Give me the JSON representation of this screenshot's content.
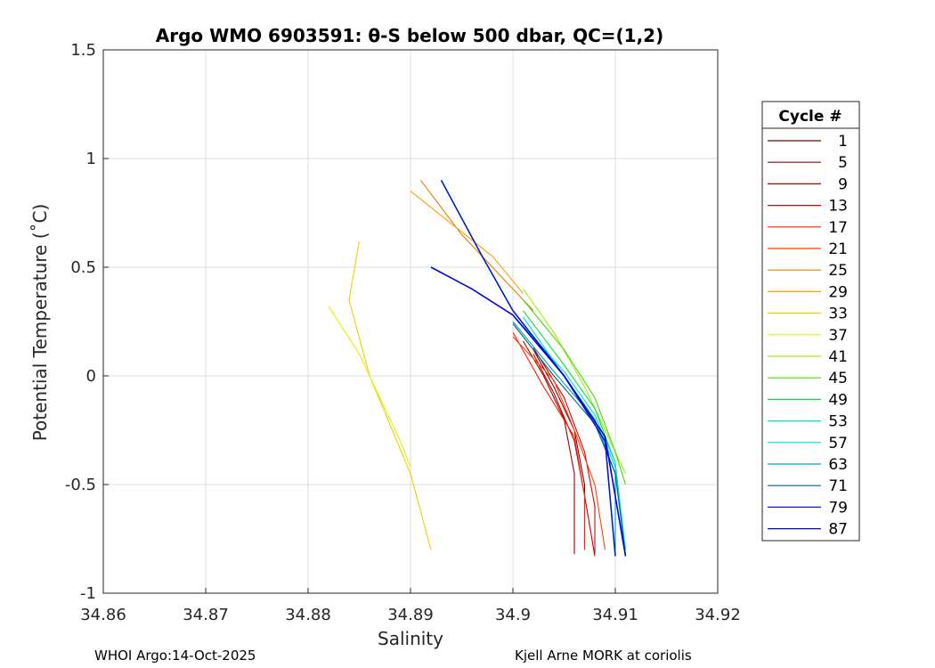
{
  "chart_data": {
    "type": "line",
    "title": "Argo WMO 6903591: θ-S below 500 dbar,  QC=(1,2)",
    "xlabel": "Salinity",
    "ylabel": "Potential Temperature (˚C)",
    "xlim": [
      34.86,
      34.92
    ],
    "ylim": [
      -1,
      1.5
    ],
    "xticks": [
      "34.86",
      "34.87",
      "34.88",
      "34.89",
      "34.9",
      "34.91",
      "34.92"
    ],
    "yticks": [
      "-1",
      "-0.5",
      "0",
      "0.5",
      "1",
      "1.5"
    ],
    "grid": true,
    "legend": {
      "title": "Cycle #",
      "placement": "outside-right",
      "entries": [
        "1",
        "5",
        "9",
        "13",
        "17",
        "21",
        "25",
        "29",
        "33",
        "37",
        "41",
        "45",
        "49",
        "53",
        "57",
        "63",
        "71",
        "79",
        "87"
      ]
    },
    "series": [
      {
        "name": "1",
        "color": "#800000",
        "points": [
          [
            34.902,
            0.12
          ],
          [
            34.904,
            -0.05
          ],
          [
            34.906,
            -0.25
          ],
          [
            34.907,
            -0.5
          ],
          [
            34.907,
            -0.8
          ]
        ]
      },
      {
        "name": "5",
        "color": "#a00000",
        "points": [
          [
            34.901,
            0.16
          ],
          [
            34.903,
            0.0
          ],
          [
            34.905,
            -0.2
          ],
          [
            34.906,
            -0.45
          ],
          [
            34.906,
            -0.82
          ]
        ]
      },
      {
        "name": "9",
        "color": "#c00000",
        "points": [
          [
            34.902,
            0.1
          ],
          [
            34.904,
            -0.08
          ],
          [
            34.906,
            -0.3
          ],
          [
            34.907,
            -0.55
          ],
          [
            34.908,
            -0.83
          ]
        ]
      },
      {
        "name": "13",
        "color": "#e00000",
        "points": [
          [
            34.902,
            0.13
          ],
          [
            34.905,
            -0.1
          ],
          [
            34.907,
            -0.35
          ],
          [
            34.908,
            -0.6
          ],
          [
            34.908,
            -0.82
          ]
        ]
      },
      {
        "name": "17",
        "color": "#ff2000",
        "points": [
          [
            34.9,
            0.2
          ],
          [
            34.903,
            -0.05
          ],
          [
            34.906,
            -0.28
          ],
          [
            34.907,
            -0.55
          ],
          [
            34.907,
            -0.8
          ]
        ]
      },
      {
        "name": "21",
        "color": "#ff4000",
        "points": [
          [
            34.9,
            0.18
          ],
          [
            34.904,
            -0.02
          ],
          [
            34.906,
            -0.25
          ],
          [
            34.908,
            -0.5
          ],
          [
            34.909,
            -0.8
          ]
        ]
      },
      {
        "name": "25",
        "color": "#e08000",
        "points": [
          [
            34.891,
            0.9
          ],
          [
            34.895,
            0.65
          ],
          [
            34.899,
            0.45
          ],
          [
            34.902,
            0.3
          ]
        ]
      },
      {
        "name": "29",
        "color": "#ffa000",
        "points": [
          [
            34.89,
            0.85
          ],
          [
            34.894,
            0.7
          ],
          [
            34.898,
            0.55
          ],
          [
            34.901,
            0.38
          ]
        ]
      },
      {
        "name": "33",
        "color": "#f0d000",
        "points": [
          [
            34.885,
            0.62
          ],
          [
            34.884,
            0.35
          ],
          [
            34.886,
            0.0
          ],
          [
            34.89,
            -0.45
          ],
          [
            34.892,
            -0.8
          ]
        ]
      },
      {
        "name": "37",
        "color": "#e0f000",
        "points": [
          [
            34.882,
            0.32
          ],
          [
            34.885,
            0.1
          ],
          [
            34.887,
            -0.1
          ],
          [
            34.889,
            -0.3
          ],
          [
            34.89,
            -0.42
          ]
        ]
      },
      {
        "name": "41",
        "color": "#a0f000",
        "points": [
          [
            34.901,
            0.4
          ],
          [
            34.904,
            0.2
          ],
          [
            34.907,
            -0.05
          ],
          [
            34.909,
            -0.25
          ],
          [
            34.911,
            -0.45
          ]
        ]
      },
      {
        "name": "45",
        "color": "#40e000",
        "points": [
          [
            34.901,
            0.35
          ],
          [
            34.905,
            0.12
          ],
          [
            34.908,
            -0.1
          ],
          [
            34.91,
            -0.35
          ],
          [
            34.911,
            -0.5
          ]
        ]
      },
      {
        "name": "49",
        "color": "#00e040",
        "points": [
          [
            34.901,
            0.3
          ],
          [
            34.905,
            0.05
          ],
          [
            34.908,
            -0.15
          ],
          [
            34.91,
            -0.4
          ],
          [
            34.91,
            -0.8
          ]
        ]
      },
      {
        "name": "53",
        "color": "#00e0c0",
        "points": [
          [
            34.9,
            0.28
          ],
          [
            34.905,
            0.02
          ],
          [
            34.908,
            -0.18
          ],
          [
            34.91,
            -0.4
          ],
          [
            34.911,
            -0.8
          ]
        ]
      },
      {
        "name": "57",
        "color": "#00d8d8",
        "points": [
          [
            34.901,
            0.27
          ],
          [
            34.905,
            0.0
          ],
          [
            34.908,
            -0.2
          ],
          [
            34.91,
            -0.42
          ],
          [
            34.911,
            -0.82
          ]
        ]
      },
      {
        "name": "63",
        "color": "#00a0c0",
        "points": [
          [
            34.9,
            0.25
          ],
          [
            34.904,
            0.02
          ],
          [
            34.908,
            -0.2
          ],
          [
            34.91,
            -0.45
          ],
          [
            34.91,
            -0.82
          ]
        ]
      },
      {
        "name": "71",
        "color": "#006080",
        "points": [
          [
            34.9,
            0.24
          ],
          [
            34.904,
            0.0
          ],
          [
            34.908,
            -0.22
          ],
          [
            34.91,
            -0.45
          ],
          [
            34.911,
            -0.83
          ]
        ]
      },
      {
        "name": "79",
        "color": "#0020c0",
        "points": [
          [
            34.893,
            0.9
          ],
          [
            34.897,
            0.55
          ],
          [
            34.9,
            0.3
          ],
          [
            34.905,
            0.0
          ],
          [
            34.909,
            -0.3
          ],
          [
            34.91,
            -0.83
          ]
        ]
      },
      {
        "name": "87",
        "color": "#0000e0",
        "points": [
          [
            34.892,
            0.5
          ],
          [
            34.896,
            0.4
          ],
          [
            34.9,
            0.28
          ],
          [
            34.905,
            0.0
          ],
          [
            34.909,
            -0.28
          ],
          [
            34.911,
            -0.83
          ]
        ]
      }
    ]
  },
  "footer": {
    "left": "WHOI Argo:14-Oct-2025",
    "right": "Kjell Arne MORK at coriolis"
  }
}
